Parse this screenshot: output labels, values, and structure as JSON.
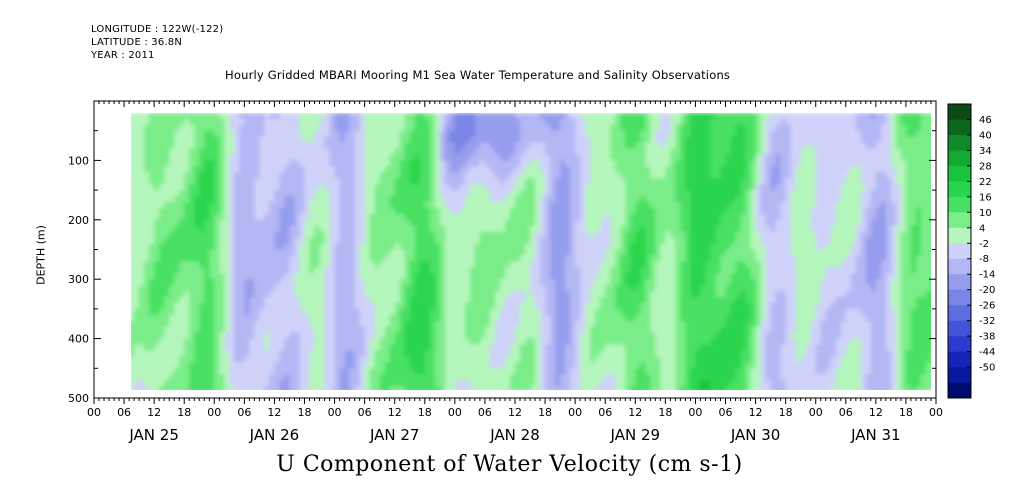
{
  "header": {
    "longitude": "LONGITUDE : 122W(-122)",
    "latitude": "LATITUDE : 36.8N",
    "year": "YEAR : 2011"
  },
  "chart_data": {
    "type": "heatmap",
    "title": "Hourly Gridded MBARI Mooring M1 Sea Water Temperature and Salinity Observations",
    "xlabel": "U Component of Water Velocity (cm s-1)",
    "ylabel": "DEPTH (m)",
    "x_hour_ticks": [
      "00",
      "06",
      "12",
      "18",
      "00",
      "06",
      "12",
      "18",
      "00",
      "06",
      "12",
      "18",
      "00",
      "06",
      "12",
      "18",
      "00",
      "06",
      "12",
      "18",
      "00",
      "06",
      "12",
      "18",
      "00",
      "06",
      "12",
      "18",
      "00"
    ],
    "x_day_labels": [
      "JAN 25",
      "JAN 26",
      "JAN 27",
      "JAN 28",
      "JAN 29",
      "JAN 30",
      "JAN 31"
    ],
    "y_ticks": [
      100,
      200,
      300,
      400,
      500
    ],
    "ylim": [
      0,
      500
    ],
    "data_depth_range_m": [
      20,
      490
    ],
    "data_start_hour": 7,
    "data_end_hour": 168,
    "colorbar": {
      "levels": [
        "46",
        "40",
        "34",
        "28",
        "22",
        "16",
        "10",
        "4",
        "-2",
        "-8",
        "-14",
        "-20",
        "-26",
        "-32",
        "-38",
        "-44",
        "-50"
      ],
      "colors": [
        "#0b4a14",
        "#0d6620",
        "#0f8a2a",
        "#13a832",
        "#1ac43e",
        "#2ad44e",
        "#48e063",
        "#7aed88",
        "#b4f6bb",
        "#cfd1f9",
        "#b3b7f4",
        "#969ded",
        "#7a85e6",
        "#5d6cdf",
        "#4254d8",
        "#2a3ccd",
        "#1426b8",
        "#0818a0",
        "#000a70"
      ]
    },
    "summary": "Vertical bands alternating between eastward (green, up to ~20 cm/s) and westward (blue, down to ~-25 cm/s) flow; strongest westward near surface around Jan 27-28."
  }
}
